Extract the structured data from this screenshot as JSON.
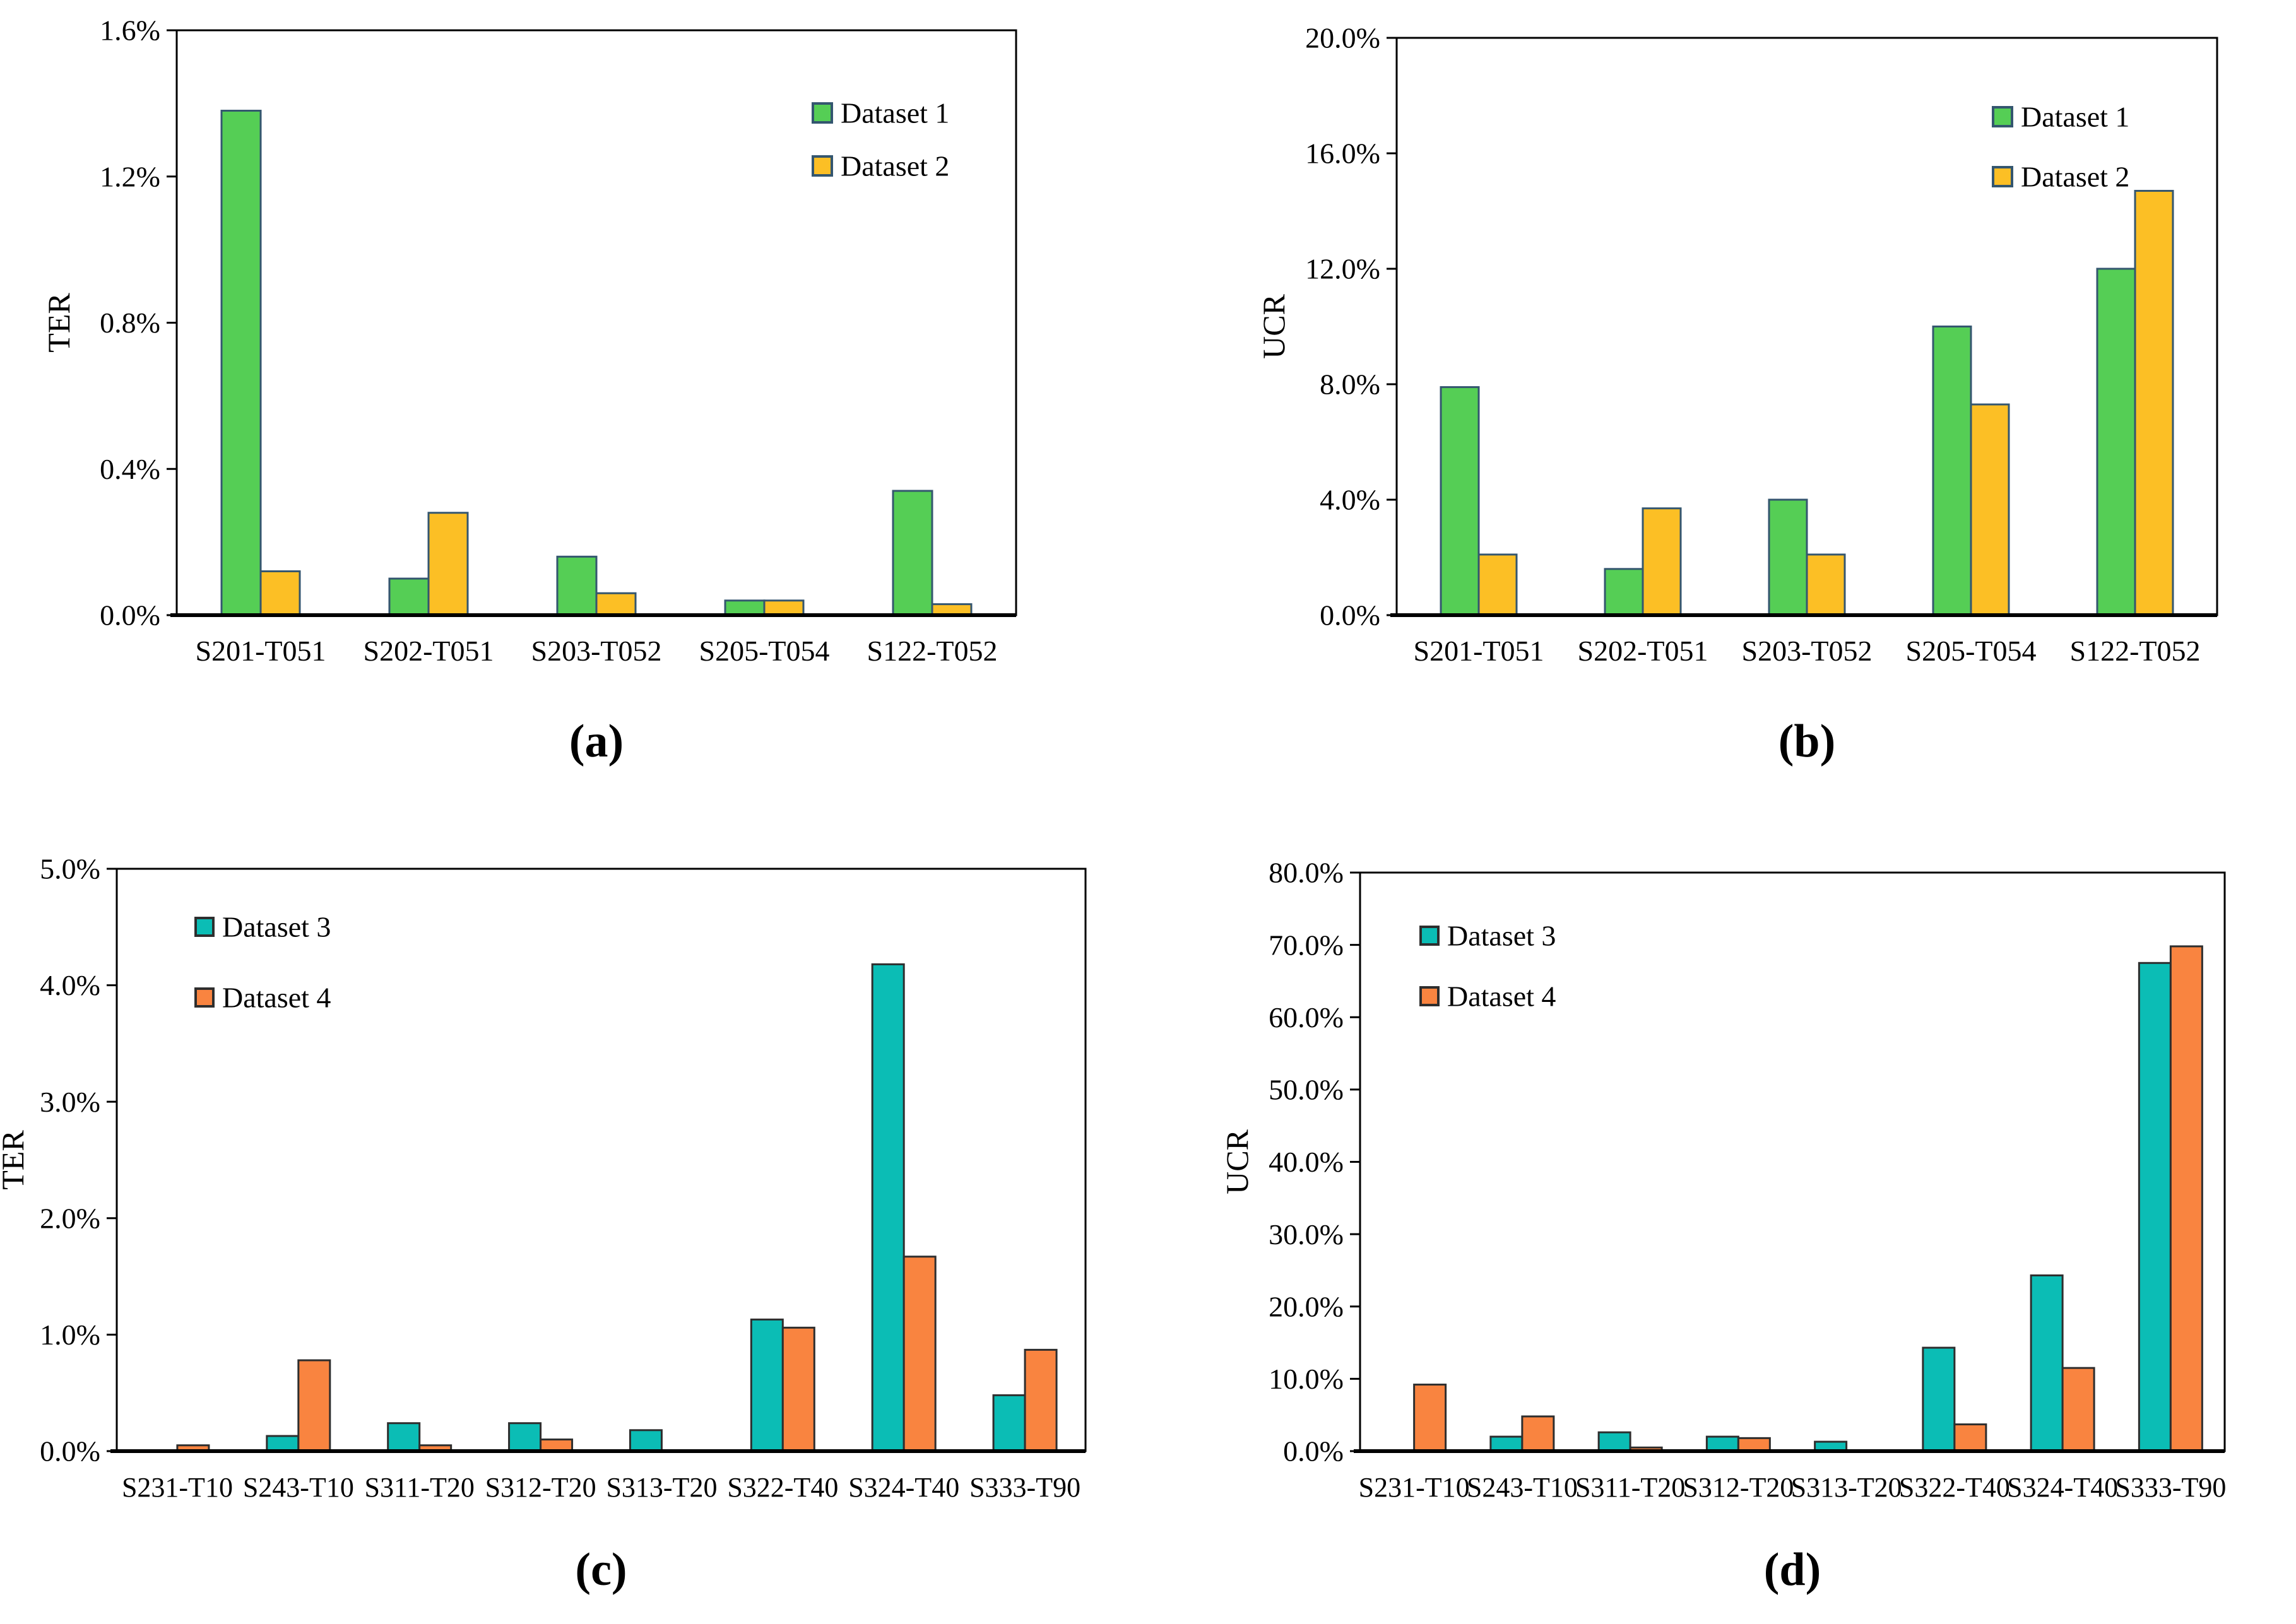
{
  "figure": {
    "description": "Four grouped bar charts comparing TER and UCR across datasets",
    "background": "#ffffff"
  },
  "colors": {
    "dataset1_fill": "#55CE55",
    "dataset2_fill": "#FCBF25",
    "dataset3_fill": "#0BBDB5",
    "dataset4_fill": "#F98440",
    "border_top_row": "#34566F",
    "border_bottom_row": "#2E2E2E",
    "axis": "#000000"
  },
  "chart_data": [
    {
      "id": "a",
      "type": "bar",
      "caption": "(a)",
      "ylabel": "TER",
      "ylim": [
        0,
        1.6
      ],
      "yticks": [
        "0.0%",
        "0.4%",
        "0.8%",
        "1.2%",
        "1.6%"
      ],
      "grid": false,
      "legend_position": "top-right",
      "categories": [
        "S201-T051",
        "S202-T051",
        "S203-T052",
        "S205-T054",
        "S122-T052"
      ],
      "series": [
        {
          "name": "Dataset 1",
          "fill": "#55CE55",
          "stroke": "#34566F",
          "values": [
            1.38,
            0.1,
            0.16,
            0.04,
            0.34
          ]
        },
        {
          "name": "Dataset 2",
          "fill": "#FCBF25",
          "stroke": "#34566F",
          "values": [
            0.12,
            0.28,
            0.06,
            0.04,
            0.03
          ]
        }
      ]
    },
    {
      "id": "b",
      "type": "bar",
      "caption": "(b)",
      "ylabel": "UCR",
      "ylim": [
        0,
        20
      ],
      "yticks": [
        "0.0%",
        "4.0%",
        "8.0%",
        "12.0%",
        "16.0%",
        "20.0%"
      ],
      "grid": false,
      "legend_position": "top-right",
      "categories": [
        "S201-T051",
        "S202-T051",
        "S203-T052",
        "S205-T054",
        "S122-T052"
      ],
      "series": [
        {
          "name": "Dataset 1",
          "fill": "#55CE55",
          "stroke": "#34566F",
          "values": [
            7.9,
            1.6,
            4.0,
            10.0,
            12.0
          ]
        },
        {
          "name": "Dataset 2",
          "fill": "#FCBF25",
          "stroke": "#34566F",
          "values": [
            2.1,
            3.7,
            2.1,
            7.3,
            14.7
          ]
        }
      ]
    },
    {
      "id": "c",
      "type": "bar",
      "caption": "(c)",
      "ylabel": "TER",
      "ylim": [
        0,
        5
      ],
      "yticks": [
        "0.0%",
        "1.0%",
        "2.0%",
        "3.0%",
        "4.0%",
        "5.0%"
      ],
      "grid": false,
      "legend_position": "top-left",
      "categories": [
        "S231-T10",
        "S243-T10",
        "S311-T20",
        "S312-T20",
        "S313-T20",
        "S322-T40",
        "S324-T40",
        "S333-T90"
      ],
      "series": [
        {
          "name": "Dataset 3",
          "fill": "#0BBDB5",
          "stroke": "#2E2E2E",
          "values": [
            0,
            0.13,
            0.24,
            0.24,
            0.18,
            1.13,
            4.18,
            0.48
          ]
        },
        {
          "name": "Dataset 4",
          "fill": "#F98440",
          "stroke": "#2E2E2E",
          "values": [
            0.05,
            0.78,
            0.05,
            0.1,
            0,
            1.06,
            1.67,
            0.87
          ]
        }
      ]
    },
    {
      "id": "d",
      "type": "bar",
      "caption": "(d)",
      "ylabel": "UCR",
      "ylim": [
        0,
        80
      ],
      "yticks": [
        "0.0%",
        "10.0%",
        "20.0%",
        "30.0%",
        "40.0%",
        "50.0%",
        "60.0%",
        "70.0%",
        "80.0%"
      ],
      "grid": false,
      "legend_position": "top-left",
      "categories": [
        "S231-T10",
        "S243-T10",
        "S311-T20",
        "S312-T20",
        "S313-T20",
        "S322-T40",
        "S324-T40",
        "S333-T90"
      ],
      "series": [
        {
          "name": "Dataset 3",
          "fill": "#0BBDB5",
          "stroke": "#2E2E2E",
          "values": [
            0,
            2.0,
            2.6,
            2.0,
            1.3,
            14.3,
            24.3,
            67.5
          ]
        },
        {
          "name": "Dataset 4",
          "fill": "#F98440",
          "stroke": "#2E2E2E",
          "values": [
            9.2,
            4.8,
            0.5,
            1.8,
            0,
            3.7,
            11.5,
            69.8
          ]
        }
      ]
    }
  ]
}
